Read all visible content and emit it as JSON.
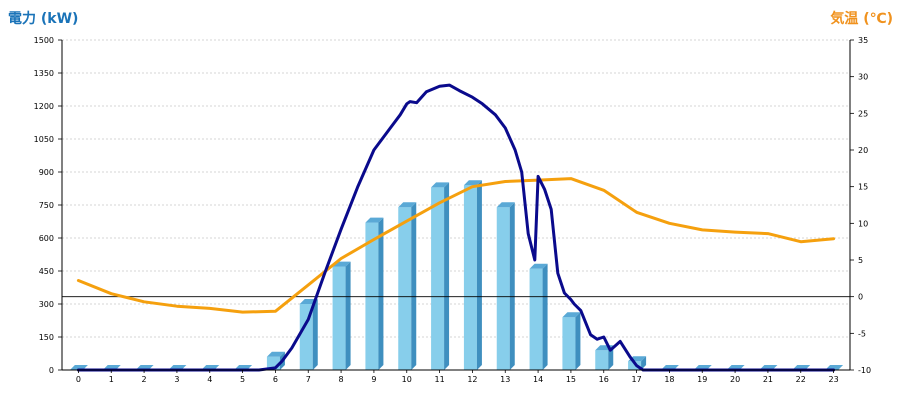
{
  "chart_data": {
    "type": "bar",
    "y_left_label": "電力 (kW)",
    "y_right_label": "気温 (℃)",
    "categories": [
      "0",
      "1",
      "2",
      "3",
      "4",
      "5",
      "6",
      "7",
      "8",
      "9",
      "10",
      "11",
      "12",
      "13",
      "14",
      "15",
      "16",
      "17",
      "18",
      "19",
      "20",
      "21",
      "22",
      "23"
    ],
    "y_left_range": [
      0,
      1500
    ],
    "y_left_ticks": [
      "0",
      "150",
      "300",
      "450",
      "600",
      "750",
      "900",
      "1050",
      "1200",
      "1350",
      "1500"
    ],
    "y_right_range": [
      -10,
      35
    ],
    "y_right_ticks": [
      "-10",
      "-5",
      "0",
      "5",
      "10",
      "15",
      "20",
      "25",
      "30",
      "35"
    ],
    "grid": true,
    "bars": {
      "axis": "left",
      "color": "#87ceeb",
      "values": [
        0,
        0,
        0,
        0,
        0,
        0,
        60,
        300,
        470,
        670,
        740,
        830,
        840,
        740,
        460,
        240,
        90,
        40,
        0,
        0,
        0,
        0,
        0,
        0
      ]
    },
    "power_line": {
      "axis": "left",
      "color": "#0a0a8c",
      "x": [
        0,
        5,
        5.5,
        6,
        6.2,
        6.5,
        7,
        7.5,
        8,
        8.5,
        9,
        9.5,
        9.8,
        10,
        10.1,
        10.3,
        10.6,
        11,
        11.3,
        11.6,
        12,
        12.3,
        12.7,
        13,
        13.3,
        13.5,
        13.7,
        13.9,
        14,
        14.2,
        14.4,
        14.6,
        14.8,
        15,
        15.1,
        15.3,
        15.6,
        15.8,
        16,
        16.2,
        16.5,
        16.8,
        17,
        17.2,
        17.5,
        18,
        23
      ],
      "y": [
        0,
        0,
        0,
        10,
        40,
        100,
        230,
        440,
        640,
        830,
        1000,
        1100,
        1160,
        1210,
        1220,
        1215,
        1265,
        1290,
        1295,
        1270,
        1240,
        1210,
        1160,
        1100,
        1000,
        900,
        620,
        500,
        880,
        820,
        730,
        440,
        350,
        320,
        300,
        270,
        160,
        140,
        150,
        90,
        130,
        60,
        20,
        0,
        0,
        0,
        0
      ]
    },
    "temperature_line": {
      "axis": "right",
      "color": "#f5a00e",
      "x": [
        0,
        1,
        2,
        3,
        4,
        5,
        6,
        7,
        8,
        9,
        10,
        11,
        12,
        13,
        14,
        15,
        16,
        17,
        18,
        19,
        20,
        21,
        22,
        23
      ],
      "y": [
        2.2,
        0.4,
        -0.7,
        -1.3,
        -1.6,
        -2.1,
        -2.0,
        1.6,
        5.2,
        7.8,
        10.3,
        12.8,
        15.0,
        15.7,
        15.9,
        16.1,
        14.5,
        11.5,
        10.0,
        9.1,
        8.8,
        8.6,
        7.5,
        7.9
      ]
    },
    "zero_line": {
      "axis": "right",
      "value": 0
    }
  }
}
